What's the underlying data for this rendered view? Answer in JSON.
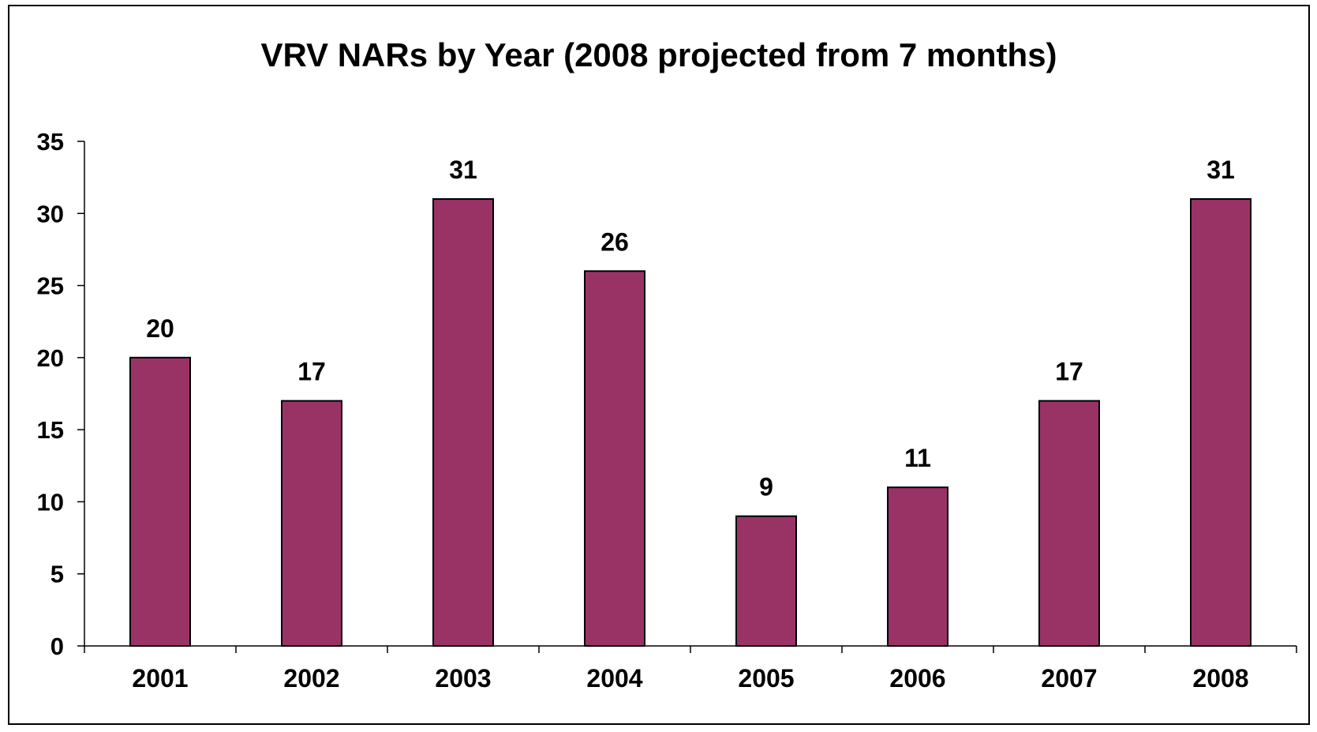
{
  "chart_data": {
    "type": "bar",
    "title": "VRV NARs by Year (2008 projected from 7 months)",
    "xlabel": "",
    "ylabel": "",
    "categories": [
      "2001",
      "2002",
      "2003",
      "2004",
      "2005",
      "2006",
      "2007",
      "2008"
    ],
    "values": [
      20,
      17,
      31,
      26,
      9,
      11,
      17,
      31
    ],
    "data_labels": [
      "20",
      "17",
      "31",
      "26",
      "9",
      "11",
      "17",
      "31"
    ],
    "ylim": [
      0,
      35
    ],
    "yticks": [
      "0",
      "5",
      "10",
      "15",
      "20",
      "25",
      "30",
      "35"
    ],
    "grid": false,
    "legend": "none",
    "bar_color": "#993366",
    "bar_edge_color": "#000000"
  }
}
